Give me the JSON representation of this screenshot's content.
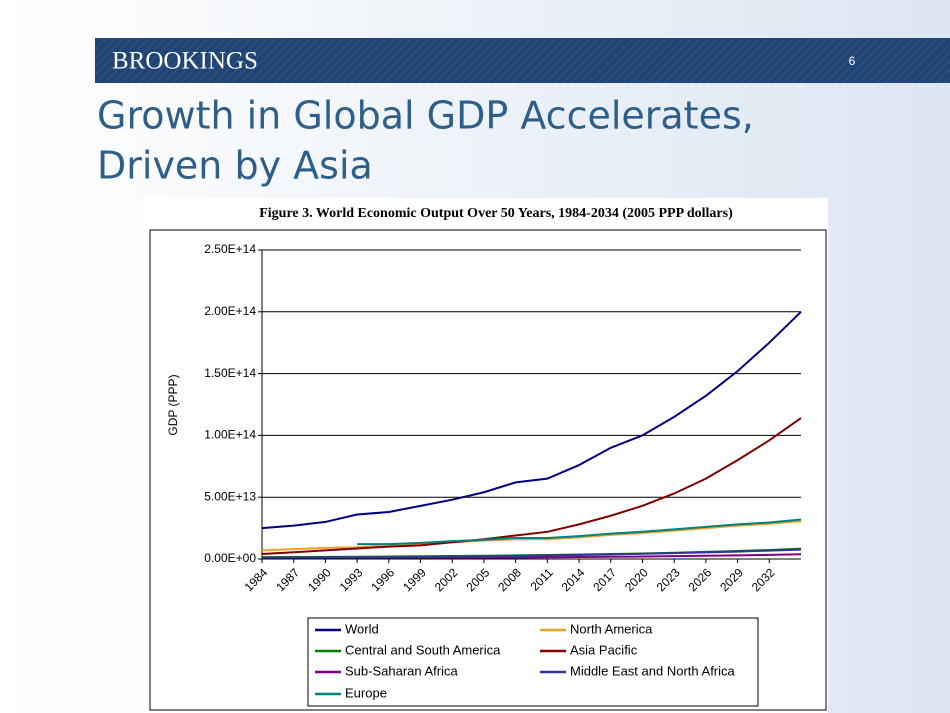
{
  "slide": {
    "brand": "BROOKINGS",
    "page_number": "6",
    "title_lines": [
      "Growth in Global GDP Accelerates,",
      "Driven by Asia"
    ]
  },
  "chart_data": {
    "type": "line",
    "title": "Figure 3. World Economic Output Over 50 Years, 1984-2034 (2005 PPP dollars)",
    "y_label": "GDP (PPP)",
    "x": [
      1984,
      1987,
      1990,
      1993,
      1996,
      1999,
      2002,
      2005,
      2008,
      2011,
      2014,
      2017,
      2020,
      2023,
      2026,
      2029,
      2032,
      2035
    ],
    "xlim": [
      1984,
      2035
    ],
    "xticks": [
      1984,
      1987,
      1990,
      1993,
      1996,
      1999,
      2002,
      2005,
      2008,
      2011,
      2014,
      2017,
      2020,
      2023,
      2026,
      2029,
      2032
    ],
    "ylim": [
      0,
      250000000000000.0
    ],
    "yticks": [
      {
        "value": 0,
        "label": "0.00E+00"
      },
      {
        "value": 50000000000000.0,
        "label": "5.00E+13"
      },
      {
        "value": 100000000000000.0,
        "label": "1.00E+14"
      },
      {
        "value": 150000000000000.0,
        "label": "1.50E+14"
      },
      {
        "value": 200000000000000.0,
        "label": "2.00E+14"
      },
      {
        "value": 250000000000000.0,
        "label": "2.50E+14"
      }
    ],
    "grid": true,
    "legend": "bottom",
    "series": [
      {
        "name": "World",
        "color": "#000080",
        "values": [
          25000000000000.0,
          27000000000000.0,
          30000000000000.0,
          36000000000000.0,
          38000000000000.0,
          43000000000000.0,
          48000000000000.0,
          54000000000000.0,
          62000000000000.0,
          65000000000000.0,
          76000000000000.0,
          90000000000000.0,
          100000000000000.0,
          115000000000000.0,
          132000000000000.0,
          152000000000000.0,
          175000000000000.0,
          200000000000000.0
        ]
      },
      {
        "name": "North America",
        "color": "#f0a020",
        "values": [
          7000000000000.0,
          8000000000000.0,
          9000000000000.0,
          9500000000000.0,
          11000000000000.0,
          12500000000000.0,
          13500000000000.0,
          15000000000000.0,
          16000000000000.0,
          16000000000000.0,
          17500000000000.0,
          19500000000000.0,
          21000000000000.0,
          23000000000000.0,
          25000000000000.0,
          27000000000000.0,
          28500000000000.0,
          30500000000000.0
        ]
      },
      {
        "name": "Central and South America",
        "color": "#008000",
        "values": [
          1500000000000.0,
          1600000000000.0,
          1700000000000.0,
          1800000000000.0,
          2000000000000.0,
          2200000000000.0,
          2400000000000.0,
          2600000000000.0,
          2900000000000.0,
          3200000000000.0,
          3600000000000.0,
          4000000000000.0,
          4500000000000.0,
          5100000000000.0,
          5800000000000.0,
          6500000000000.0,
          7300000000000.0,
          8400000000000.0
        ]
      },
      {
        "name": "Asia Pacific",
        "color": "#800000",
        "values": [
          4000000000000.0,
          5500000000000.0,
          7000000000000.0,
          8500000000000.0,
          10000000000000.0,
          11000000000000.0,
          13500000000000.0,
          16000000000000.0,
          19000000000000.0,
          22000000000000.0,
          28000000000000.0,
          35000000000000.0,
          43000000000000.0,
          53000000000000.0,
          65000000000000.0,
          80000000000000.0,
          96000000000000.0,
          114000000000000.0
        ]
      },
      {
        "name": "Sub-Saharan Africa",
        "color": "#800080",
        "values": [
          500000000000.0,
          500000000000.0,
          600000000000.0,
          600000000000.0,
          700000000000.0,
          800000000000.0,
          900000000000.0,
          1000000000000.0,
          1200000000000.0,
          1400000000000.0,
          1600000000000.0,
          1800000000000.0,
          2000000000000.0,
          2300000000000.0,
          2600000000000.0,
          2900000000000.0,
          3300000000000.0,
          3800000000000.0
        ]
      },
      {
        "name": "Middle East and North Africa",
        "color": "#333399",
        "values": [
          1000000000000.0,
          1100000000000.0,
          1200000000000.0,
          1300000000000.0,
          1400000000000.0,
          1600000000000.0,
          1800000000000.0,
          2100000000000.0,
          2400000000000.0,
          2800000000000.0,
          3200000000000.0,
          3700000000000.0,
          4200000000000.0,
          4800000000000.0,
          5400000000000.0,
          6000000000000.0,
          6800000000000.0,
          7600000000000.0
        ]
      },
      {
        "name": "Europe",
        "color": "#008080",
        "values": [
          null,
          null,
          null,
          12000000000000.0,
          12000000000000.0,
          13000000000000.0,
          14500000000000.0,
          15500000000000.0,
          17000000000000.0,
          17000000000000.0,
          18500000000000.0,
          20500000000000.0,
          22000000000000.0,
          24000000000000.0,
          26000000000000.0,
          28000000000000.0,
          29500000000000.0,
          32000000000000.0
        ]
      }
    ]
  }
}
